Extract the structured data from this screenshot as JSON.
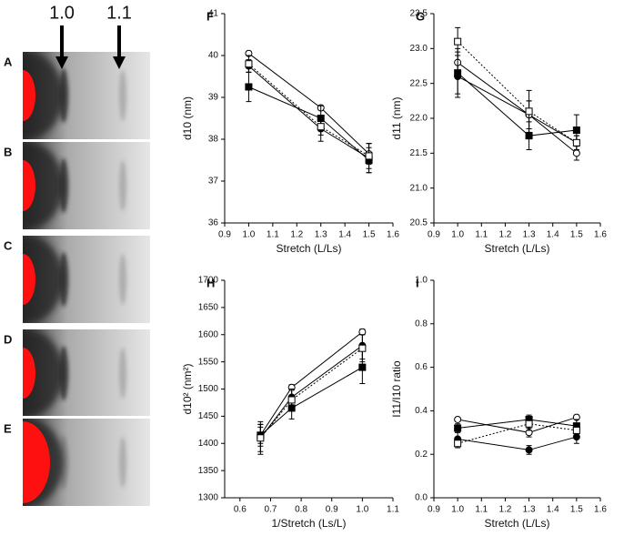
{
  "image_panel": {
    "labels": [
      "A",
      "B",
      "C",
      "D",
      "E"
    ],
    "markers": [
      "1.0",
      "1.1"
    ]
  },
  "chart_data": [
    {
      "type": "line",
      "title": "F",
      "x_label": "Stretch (L/Ls)",
      "y_label": "d10 (nm)",
      "x": [
        1.0,
        1.3,
        1.5
      ],
      "xlim": [
        0.9,
        1.6
      ],
      "xticks": [
        0.9,
        {
          "value": 1,
          "label": "1.0"
        },
        1.1,
        1.2,
        1.3,
        1.4,
        1.5,
        1.6
      ],
      "ylim": [
        36,
        41
      ],
      "yticks": [
        36,
        37,
        38,
        39,
        40,
        41
      ],
      "series": [
        {
          "marker": "circle",
          "filled": true,
          "dotted": false,
          "values": [
            39.75,
            38.25,
            37.55
          ],
          "errors": [
            0.15,
            0.3,
            0.35
          ]
        },
        {
          "marker": "circle",
          "filled": false,
          "dotted": false,
          "values": [
            40.05,
            38.75,
            37.65
          ],
          "errors": [
            0.05,
            0.05,
            0.25
          ]
        },
        {
          "marker": "square",
          "filled": true,
          "dotted": false,
          "values": [
            39.25,
            38.5,
            37.5
          ],
          "errors": [
            0.35,
            0.3,
            0.3
          ]
        },
        {
          "marker": "square",
          "filled": false,
          "dotted": true,
          "values": [
            39.8,
            38.3,
            37.6
          ],
          "errors": [
            0.2,
            0.2,
            0.3
          ]
        }
      ]
    },
    {
      "type": "line",
      "title": "G",
      "x_label": "Stretch (L/Ls)",
      "y_label": "d11 (nm)",
      "x": [
        1.0,
        1.3,
        1.5
      ],
      "xlim": [
        0.9,
        1.6
      ],
      "xticks": [
        0.9,
        {
          "value": 1,
          "label": "1.0"
        },
        1.1,
        1.2,
        1.3,
        1.4,
        1.5,
        1.6
      ],
      "ylim": [
        20.5,
        23.5
      ],
      "yticks": [
        20.5,
        {
          "value": 21,
          "label": "21.0"
        },
        21.5,
        {
          "value": 22,
          "label": "22.0"
        },
        22.5,
        {
          "value": 23,
          "label": "23.0"
        },
        23.5
      ],
      "series": [
        {
          "marker": "circle",
          "filled": true,
          "dotted": false,
          "values": [
            22.6,
            22.05,
            21.65
          ],
          "errors": [
            0.3,
            0.2,
            0.1
          ]
        },
        {
          "marker": "circle",
          "filled": false,
          "dotted": false,
          "values": [
            22.8,
            22.05,
            21.5
          ],
          "errors": [
            0.2,
            0.2,
            0.1
          ]
        },
        {
          "marker": "square",
          "filled": true,
          "dotted": false,
          "values": [
            22.65,
            21.75,
            21.83
          ],
          "errors": [
            0.3,
            0.2,
            0.22
          ]
        },
        {
          "marker": "square",
          "filled": false,
          "dotted": true,
          "values": [
            23.1,
            22.1,
            21.65
          ],
          "errors": [
            0.2,
            0.3,
            0.1
          ]
        }
      ]
    },
    {
      "type": "line",
      "title": "H",
      "x_label": "1/Stretch (Ls/L)",
      "y_label": "d10² (nm²)",
      "x": [
        0.667,
        0.769,
        1.0
      ],
      "xlim": [
        0.55,
        1.1
      ],
      "xticks": [
        0.6,
        0.7,
        0.8,
        0.9,
        {
          "value": 1,
          "label": "1.0"
        },
        1.1
      ],
      "ylim": [
        1300,
        1700
      ],
      "yticks": [
        1300,
        1350,
        1400,
        1450,
        1500,
        1550,
        1600,
        1650,
        1700
      ],
      "series": [
        {
          "marker": "circle",
          "filled": true,
          "dotted": false,
          "values": [
            1410,
            1485,
            1580
          ],
          "errors": [
            30,
            20,
            25
          ]
        },
        {
          "marker": "circle",
          "filled": false,
          "dotted": false,
          "values": [
            1415,
            1503,
            1605
          ],
          "errors": [
            15,
            5,
            5
          ]
        },
        {
          "marker": "square",
          "filled": true,
          "dotted": false,
          "values": [
            1415,
            1465,
            1540
          ],
          "errors": [
            20,
            20,
            30
          ]
        },
        {
          "marker": "square",
          "filled": false,
          "dotted": true,
          "values": [
            1410,
            1480,
            1575
          ],
          "errors": [
            25,
            20,
            25
          ]
        }
      ]
    },
    {
      "type": "line",
      "title": "I",
      "x_label": "Stretch (L/Ls)",
      "y_label": "I11/I10 ratio",
      "x": [
        1.0,
        1.3,
        1.5
      ],
      "xlim": [
        0.9,
        1.6
      ],
      "xticks": [
        0.9,
        {
          "value": 1,
          "label": "1.0"
        },
        1.1,
        1.2,
        1.3,
        1.4,
        1.5,
        1.6
      ],
      "ylim": [
        0,
        1
      ],
      "yticks": [
        {
          "value": 0,
          "label": "0.0"
        },
        0.2,
        0.4,
        0.6,
        0.8,
        {
          "value": 1,
          "label": "1.0"
        }
      ],
      "series": [
        {
          "marker": "circle",
          "filled": true,
          "dotted": false,
          "values": [
            0.27,
            0.22,
            0.28
          ],
          "errors": [
            0.03,
            0.02,
            0.03
          ]
        },
        {
          "marker": "circle",
          "filled": false,
          "dotted": false,
          "values": [
            0.36,
            0.3,
            0.37
          ],
          "errors": [
            0.01,
            0.02,
            0.01
          ]
        },
        {
          "marker": "square",
          "filled": true,
          "dotted": false,
          "values": [
            0.32,
            0.36,
            0.33
          ],
          "errors": [
            0.02,
            0.02,
            0.03
          ]
        },
        {
          "marker": "square",
          "filled": false,
          "dotted": true,
          "values": [
            0.25,
            0.34,
            0.31
          ],
          "errors": [
            0.02,
            0.03,
            0.02
          ]
        }
      ]
    }
  ]
}
